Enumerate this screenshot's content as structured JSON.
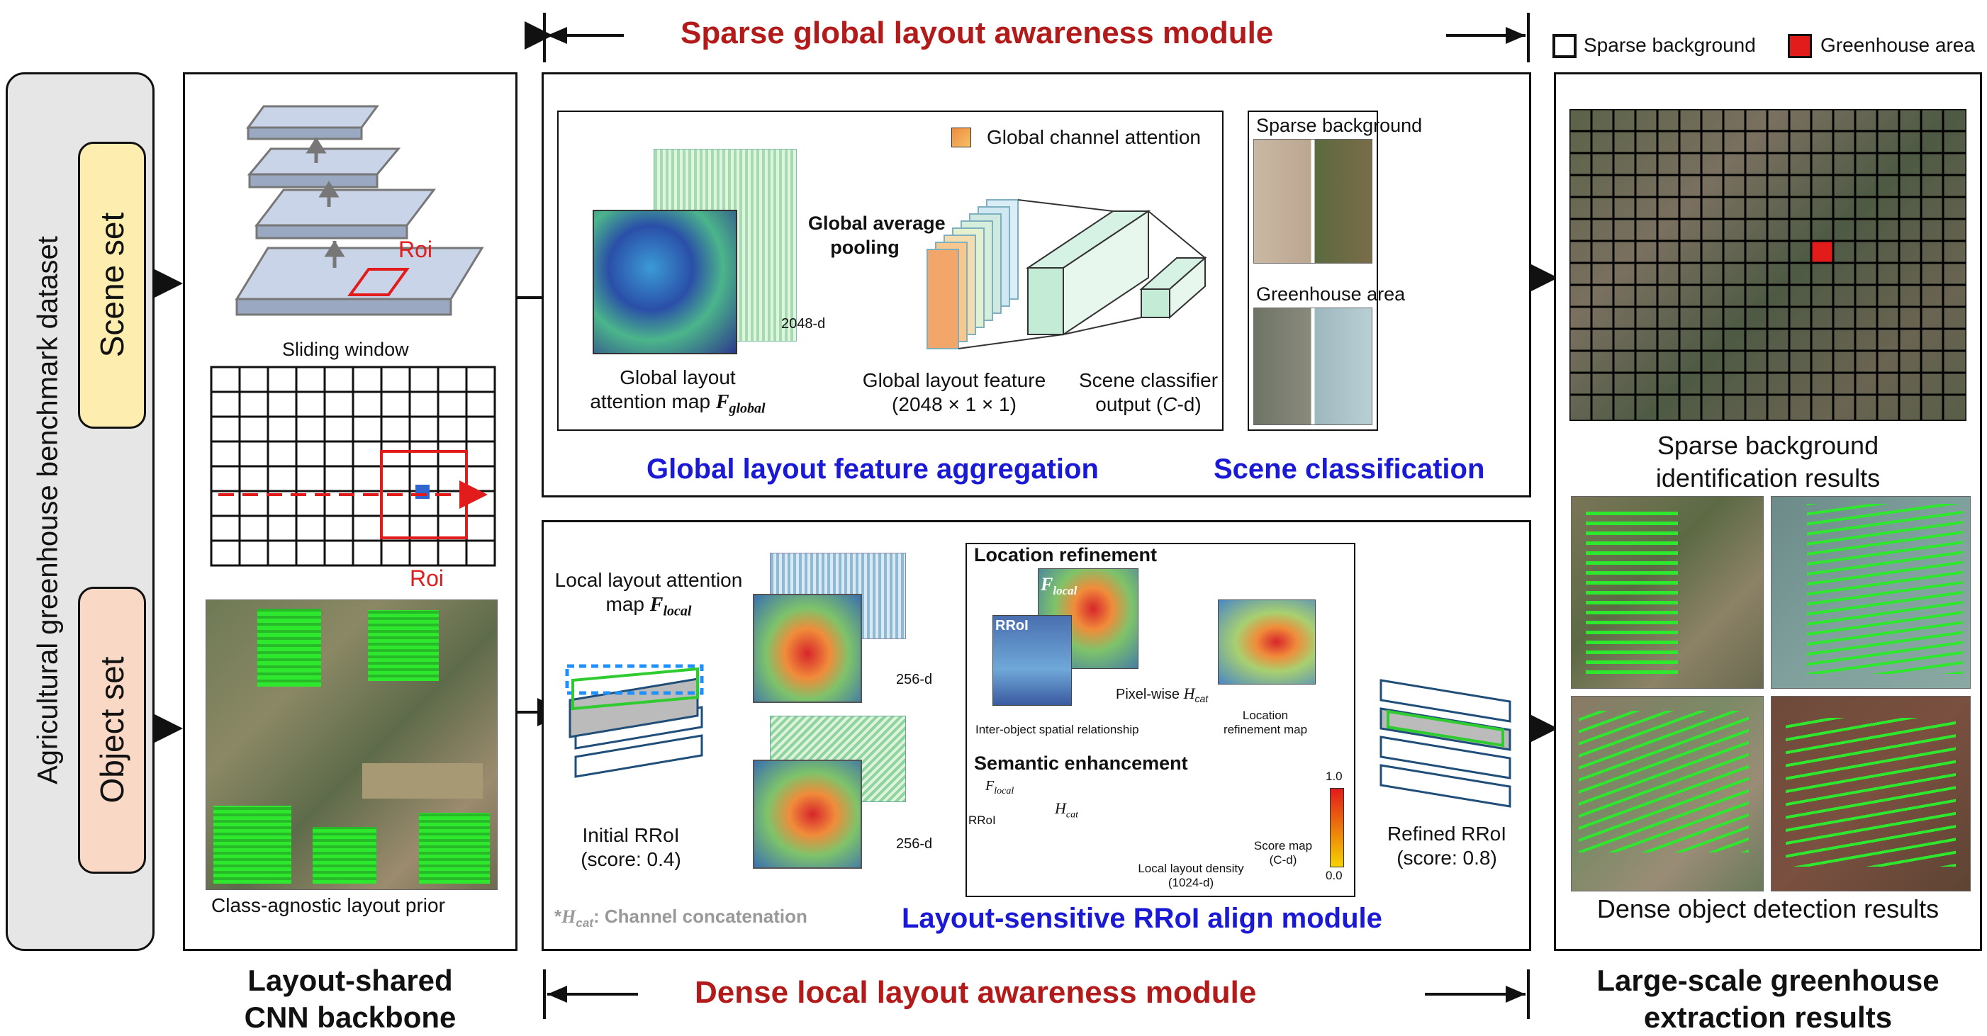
{
  "titles": {
    "sparse_module": "Sparse global layout awareness module",
    "dense_module": "Dense local layout awareness module",
    "global_aggregation": "Global layout feature aggregation",
    "scene_classification": "Scene classification",
    "rroi_align": "Layout-sensitive RRoI align module"
  },
  "legend": {
    "sparse_background": "Sparse background",
    "greenhouse_area": "Greenhouse area"
  },
  "dataset": {
    "title": "Agricultural greenhouse benchmark dataset",
    "scene_set": "Scene set",
    "object_set": "Object set"
  },
  "backbone": {
    "roi_top": "Roi",
    "sliding_window": "Sliding window",
    "roi_bottom": "Roi",
    "prior_caption": "Class-agnostic layout prior",
    "label_line1": "Layout-shared",
    "label_line2": "CNN backbone"
  },
  "global_panel": {
    "channel_attention": "Global channel attention",
    "gap_line1": "Global average",
    "gap_line2": "pooling",
    "dim_2048": "2048-d",
    "map_line1": "Global layout",
    "map_line2": "attention map ",
    "map_symbol": "F",
    "map_sub": "global",
    "feature_line1": "Global layout feature",
    "feature_line2": "(2048 × 1 × 1)",
    "classifier_line1": "Scene classifier",
    "classifier_line2_pre": "output (",
    "classifier_line2_c": "C",
    "classifier_line2_post": "-d)",
    "sparse_background": "Sparse background",
    "greenhouse_area": "Greenhouse area"
  },
  "local_panel": {
    "map_line1": "Local layout attention",
    "map_line2": "map ",
    "map_symbol": "F",
    "map_sub": "local",
    "dim_256_top": "256-d",
    "dim_256_bottom": "256-d",
    "initial_line1": "Initial RRoI",
    "initial_line2": "(score: 0.4)",
    "location_refinement": "Location refinement",
    "f_local_symbol": "F",
    "f_local_sub": "local",
    "rroi": "RRoI",
    "pixel_wise": "Pixel-wise ",
    "h_cat_symbol": "H",
    "h_cat_sub": "cat",
    "inter_object": "Inter-object spatial relationship",
    "loc_map_line1": "Location",
    "loc_map_line2": "refinement map",
    "semantic_enhancement": "Semantic enhancement",
    "sem_f_symbol": "F",
    "sem_f_sub": "local",
    "sem_rroi": "RRoI",
    "sem_hcat_symbol": "H",
    "sem_hcat_sub": "cat",
    "density_line1": "Local layout density",
    "density_line2": "(1024-d)",
    "score_line1": "Score map",
    "score_line2": "(C-d)",
    "scale_max": "1.0",
    "scale_min": "0.0",
    "refined_line1": "Refined RRoI",
    "refined_line2": "(score: 0.8)",
    "footnote_star": "*",
    "footnote_symbol": "H",
    "footnote_sub": "cat",
    "footnote_text": ": Channel concatenation"
  },
  "results": {
    "sparse_line1": "Sparse background",
    "sparse_line2": "identification results",
    "dense_caption": "Dense object detection results",
    "label_line1": "Large-scale greenhouse",
    "label_line2": "extraction results"
  },
  "colors": {
    "title_red": "#b31b1b",
    "title_blue": "#1a1ad6",
    "scene_pill": "#fdeeb0",
    "object_pill": "#f9d9c6",
    "dataset_panel": "#e6e6e6",
    "roi_red": "#e21b1b",
    "detection_green": "#2ee82e"
  }
}
